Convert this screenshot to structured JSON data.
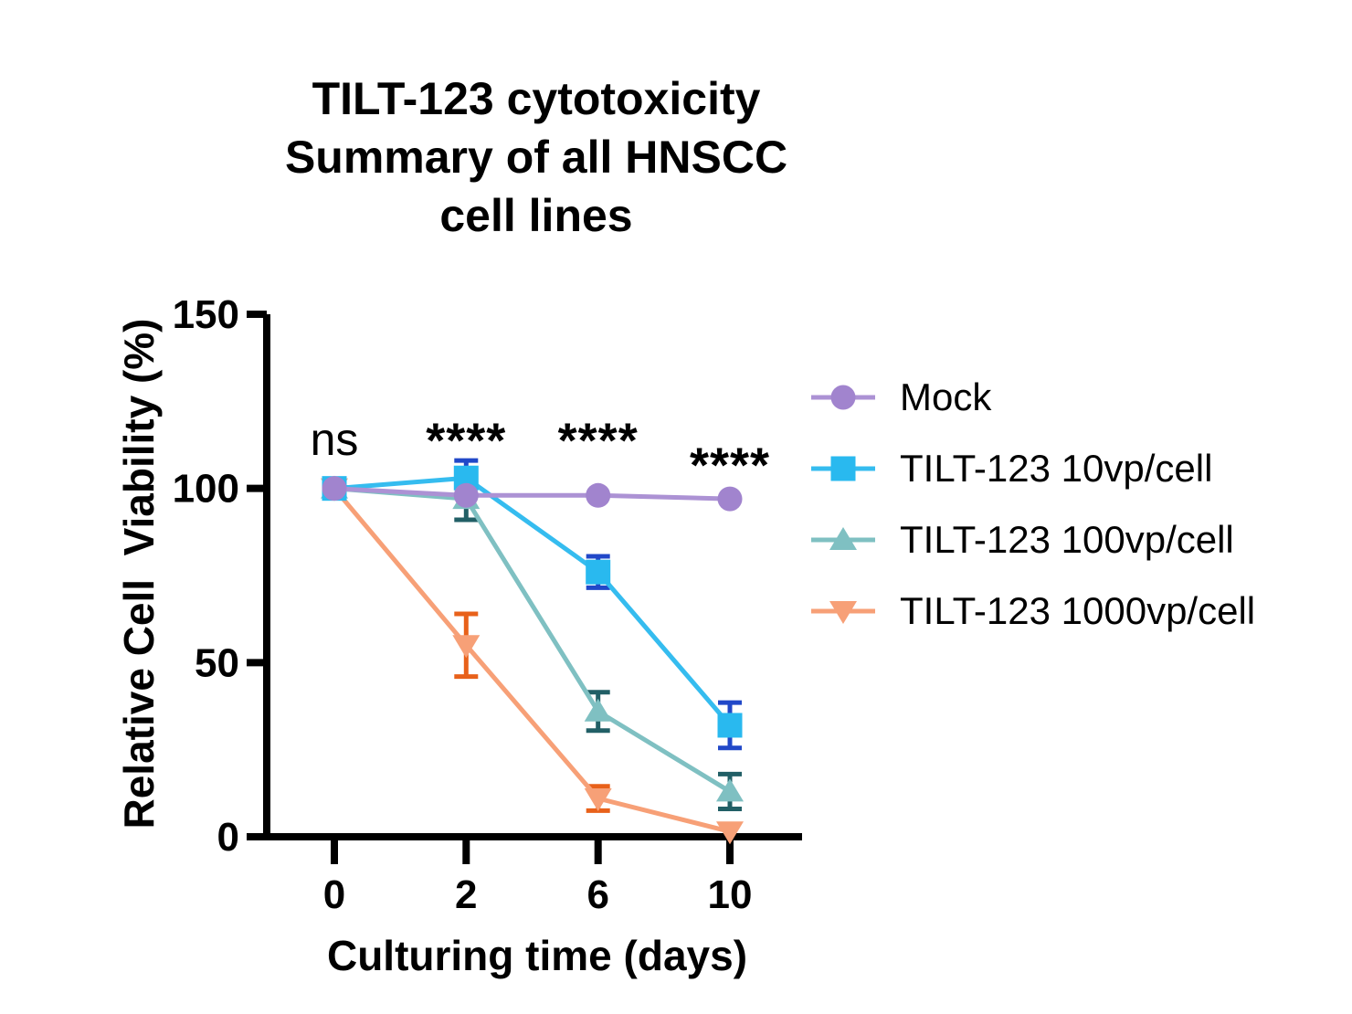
{
  "figure": {
    "title_lines": [
      "TILT-123 cytotoxicity",
      "Summary of all HNSCC",
      "cell lines"
    ]
  },
  "chart_data": {
    "type": "line",
    "title": "TILT-123 cytotoxicity Summary of all HNSCC cell lines",
    "xlabel": "Culturing time (days)",
    "ylabel": "Relative Cell  Viability (%)",
    "x_values_days": [
      0,
      2,
      6,
      10
    ],
    "x_tick_labels": [
      "0",
      "2",
      "6",
      "10"
    ],
    "y_ticks": [
      0,
      50,
      100,
      150
    ],
    "ylim": [
      0,
      150
    ],
    "grid": false,
    "legend_position": "right",
    "axis_color": "#000000",
    "series": [
      {
        "name": "Mock",
        "marker": "circle",
        "color": "#A184CE",
        "line_color": "#AC92D4",
        "error_color": "#A184CE",
        "values": [
          100,
          98,
          98,
          97
        ],
        "errors": [
          0,
          0,
          0,
          0
        ]
      },
      {
        "name": "TILT-123 10vp/cell",
        "marker": "square",
        "color": "#29B9EF",
        "line_color": "#35BCEF",
        "error_color": "#2148C8",
        "values": [
          100,
          103,
          76,
          32
        ],
        "errors": [
          0,
          5,
          4.5,
          6.5
        ]
      },
      {
        "name": "TILT-123 100vp/cell",
        "marker": "triangle-up",
        "color": "#7FC0C2",
        "line_color": "#7FC0C2",
        "error_color": "#215F66",
        "values": [
          100,
          97,
          36,
          13
        ],
        "errors": [
          0,
          6,
          5.5,
          5
        ]
      },
      {
        "name": "TILT-123 1000vp/cell",
        "marker": "triangle-down",
        "color": "#F7A077",
        "line_color": "#F7A077",
        "error_color": "#E8611A",
        "values": [
          100,
          55,
          11,
          1.5
        ],
        "errors": [
          0,
          9,
          3.5,
          0
        ]
      }
    ],
    "significance": [
      {
        "text": "ns",
        "x_index": 0,
        "y_value": 113
      },
      {
        "text": "****",
        "x_index": 1,
        "y_value": 116
      },
      {
        "text": "****",
        "x_index": 2,
        "y_value": 116
      },
      {
        "text": "****",
        "x_index": 3,
        "y_value": 109
      }
    ]
  }
}
